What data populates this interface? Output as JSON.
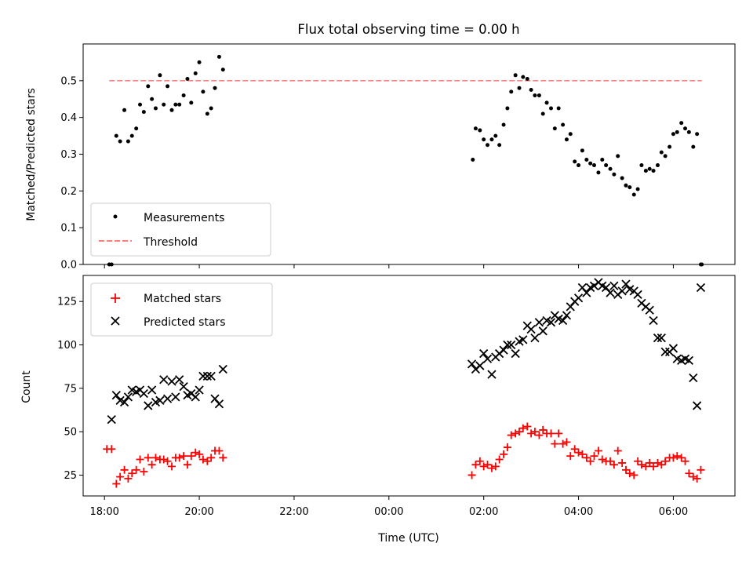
{
  "chart_data": [
    {
      "type": "scatter",
      "panel": "top",
      "title": "Flux total observing time = 0.00 h",
      "ylabel": "Matched/Predicted stars",
      "ylim": [
        0,
        0.6
      ],
      "y_ticks": [
        "0.0",
        "0.1",
        "0.2",
        "0.3",
        "0.4",
        "0.5"
      ],
      "grid": false,
      "legend_position": "lower-left",
      "series": [
        {
          "name": "Measurements",
          "marker": "dot",
          "color": "#000000",
          "x": [
            18.1,
            18.15,
            18.25,
            18.33,
            18.42,
            18.5,
            18.58,
            18.67,
            18.75,
            18.83,
            18.92,
            19.0,
            19.08,
            19.17,
            19.25,
            19.33,
            19.42,
            19.5,
            19.58,
            19.67,
            19.75,
            19.83,
            19.92,
            20.0,
            20.08,
            20.17,
            20.25,
            20.33,
            20.42,
            20.5,
            25.77,
            25.83,
            25.92,
            26.0,
            26.08,
            26.17,
            26.25,
            26.33,
            26.42,
            26.5,
            26.58,
            26.67,
            26.75,
            26.83,
            26.92,
            27.0,
            27.08,
            27.17,
            27.25,
            27.33,
            27.42,
            27.5,
            27.58,
            27.67,
            27.75,
            27.83,
            27.92,
            28.0,
            28.08,
            28.17,
            28.25,
            28.33,
            28.42,
            28.5,
            28.58,
            28.67,
            28.75,
            28.83,
            28.92,
            29.0,
            29.08,
            29.17,
            29.25,
            29.33,
            29.42,
            29.5,
            29.58,
            29.67,
            29.75,
            29.83,
            29.92,
            30.0,
            30.08,
            30.17,
            30.25,
            30.33,
            30.42,
            30.5,
            30.58,
            30.6
          ],
          "y": [
            0.0,
            0.0,
            0.35,
            0.335,
            0.42,
            0.335,
            0.35,
            0.37,
            0.435,
            0.415,
            0.485,
            0.45,
            0.425,
            0.515,
            0.435,
            0.485,
            0.42,
            0.435,
            0.435,
            0.46,
            0.505,
            0.44,
            0.52,
            0.55,
            0.47,
            0.41,
            0.425,
            0.48,
            0.565,
            0.53,
            0.285,
            0.37,
            0.365,
            0.34,
            0.325,
            0.34,
            0.35,
            0.325,
            0.38,
            0.425,
            0.47,
            0.515,
            0.48,
            0.51,
            0.505,
            0.475,
            0.46,
            0.46,
            0.41,
            0.44,
            0.425,
            0.37,
            0.425,
            0.38,
            0.34,
            0.355,
            0.28,
            0.27,
            0.31,
            0.285,
            0.275,
            0.27,
            0.25,
            0.285,
            0.27,
            0.26,
            0.245,
            0.295,
            0.235,
            0.215,
            0.21,
            0.19,
            0.205,
            0.27,
            0.255,
            0.26,
            0.255,
            0.27,
            0.305,
            0.295,
            0.32,
            0.355,
            0.36,
            0.385,
            0.37,
            0.36,
            0.32,
            0.355,
            0.0,
            0.0
          ]
        },
        {
          "name": "Threshold",
          "marker": "dashed-line",
          "color": "#ff7f7f",
          "x": [
            18.1,
            30.6
          ],
          "y": [
            0.5,
            0.5
          ]
        }
      ]
    },
    {
      "type": "scatter",
      "panel": "bottom",
      "xlabel": "Time (UTC)",
      "ylabel": "Count",
      "ylim": [
        13,
        140
      ],
      "y_ticks": [
        "25",
        "50",
        "75",
        "100",
        "125"
      ],
      "x_ticks": [
        "18:00",
        "20:00",
        "22:00",
        "00:00",
        "02:00",
        "04:00",
        "06:00"
      ],
      "xlim_hours": [
        17.55,
        31.3
      ],
      "grid": false,
      "legend_position": "upper-left",
      "series": [
        {
          "name": "Matched stars",
          "marker": "plus",
          "color": "#ff0000",
          "x": [
            18.05,
            18.15,
            18.25,
            18.33,
            18.42,
            18.5,
            18.58,
            18.67,
            18.75,
            18.83,
            18.92,
            19.0,
            19.08,
            19.17,
            19.25,
            19.33,
            19.42,
            19.5,
            19.58,
            19.67,
            19.75,
            19.83,
            19.92,
            20.0,
            20.08,
            20.17,
            20.25,
            20.33,
            20.42,
            20.5,
            25.75,
            25.83,
            25.92,
            26.0,
            26.08,
            26.17,
            26.25,
            26.33,
            26.42,
            26.5,
            26.58,
            26.67,
            26.75,
            26.83,
            26.92,
            27.0,
            27.08,
            27.17,
            27.25,
            27.33,
            27.42,
            27.5,
            27.58,
            27.67,
            27.75,
            27.83,
            27.92,
            28.0,
            28.08,
            28.17,
            28.25,
            28.33,
            28.42,
            28.5,
            28.58,
            28.67,
            28.75,
            28.83,
            28.92,
            29.0,
            29.08,
            29.17,
            29.25,
            29.33,
            29.42,
            29.5,
            29.58,
            29.67,
            29.75,
            29.83,
            29.92,
            30.0,
            30.08,
            30.17,
            30.25,
            30.33,
            30.42,
            30.5,
            30.58
          ],
          "y": [
            40,
            40,
            20,
            24,
            28,
            23,
            26,
            28,
            34,
            27,
            35,
            31,
            35,
            34,
            34,
            33,
            30,
            35,
            35,
            36,
            31,
            36,
            38,
            37,
            34,
            33,
            35,
            39,
            39,
            35,
            25,
            31,
            33,
            30,
            31,
            29,
            30,
            34,
            37,
            41,
            48,
            49,
            50,
            52,
            53,
            49,
            50,
            48,
            51,
            49,
            49,
            43,
            49,
            43,
            44,
            36,
            40,
            38,
            37,
            35,
            33,
            36,
            39,
            34,
            33,
            33,
            31,
            39,
            32,
            28,
            26,
            25,
            33,
            31,
            30,
            32,
            30,
            32,
            31,
            33,
            35,
            35,
            36,
            35,
            33,
            26,
            24,
            23,
            28
          ]
        },
        {
          "name": "Predicted stars",
          "marker": "x",
          "color": "#000000",
          "x": [
            18.25,
            18.33,
            18.42,
            18.5,
            18.58,
            18.67,
            18.75,
            18.83,
            18.92,
            19.0,
            19.08,
            19.17,
            19.25,
            19.33,
            19.42,
            19.5,
            19.58,
            19.67,
            19.75,
            19.83,
            19.92,
            20.0,
            20.08,
            20.17,
            20.25,
            20.33,
            20.42,
            20.5,
            25.75,
            25.83,
            25.92,
            26.0,
            26.08,
            26.17,
            26.25,
            26.33,
            26.42,
            26.5,
            26.58,
            26.67,
            26.75,
            26.83,
            26.92,
            27.0,
            27.08,
            27.17,
            27.25,
            27.33,
            27.42,
            27.5,
            27.58,
            27.67,
            27.75,
            27.83,
            27.92,
            28.0,
            28.08,
            28.17,
            28.25,
            28.33,
            28.42,
            28.5,
            28.58,
            28.67,
            28.75,
            28.83,
            28.92,
            29.0,
            29.08,
            29.17,
            29.25,
            29.33,
            29.42,
            29.5,
            29.58,
            29.67,
            29.75,
            29.83,
            29.92,
            30.0,
            30.08,
            30.17,
            30.25,
            30.33,
            30.42,
            30.5,
            30.58,
            18.15
          ],
          "y": [
            71,
            68,
            67,
            70,
            74,
            73,
            74,
            72,
            65,
            74,
            67,
            68,
            80,
            69,
            79,
            70,
            80,
            76,
            71,
            72,
            70,
            74,
            82,
            82,
            82,
            69,
            66,
            86,
            89,
            86,
            88,
            95,
            92,
            83,
            93,
            95,
            97,
            100,
            100,
            95,
            102,
            103,
            111,
            109,
            104,
            113,
            108,
            114,
            113,
            117,
            115,
            114,
            117,
            122,
            125,
            127,
            133,
            130,
            133,
            134,
            136,
            134,
            133,
            130,
            134,
            129,
            131,
            135,
            132,
            131,
            129,
            124,
            122,
            120,
            114,
            104,
            104,
            96,
            96,
            98,
            92,
            91,
            92,
            91,
            81,
            65,
            133,
            57
          ]
        }
      ]
    }
  ]
}
